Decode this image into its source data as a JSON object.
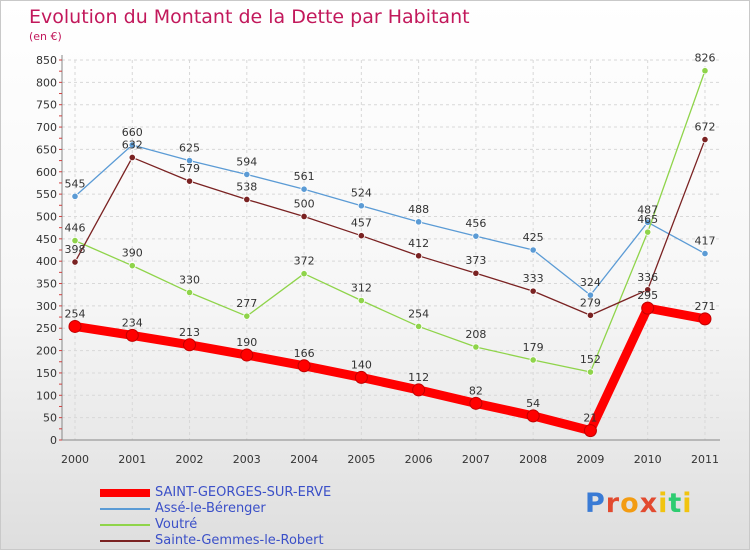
{
  "title": "Evolution du Montant de la Dette par Habitant",
  "subtitle": "(en €)",
  "logo": {
    "text": "Proxiti",
    "letters": [
      "P",
      "r",
      "o",
      "x",
      "i",
      "t",
      "i"
    ],
    "colors": [
      "#3a7bd5",
      "#e24a2f",
      "#f39c12",
      "#e24a2f",
      "#f1c40f",
      "#2ecc71",
      "#f1c40f"
    ]
  },
  "chart_data": {
    "type": "line",
    "title": "Evolution du Montant de la Dette par Habitant",
    "subtitle": "(en €)",
    "x": [
      2000,
      2001,
      2002,
      2003,
      2004,
      2005,
      2006,
      2007,
      2008,
      2009,
      2010,
      2011
    ],
    "ylim": [
      0,
      850
    ],
    "yticks": [
      0,
      50,
      100,
      150,
      200,
      250,
      300,
      350,
      400,
      450,
      500,
      550,
      600,
      650,
      700,
      750,
      800,
      850
    ],
    "grid": true,
    "legend_position": "bottom-left",
    "series": [
      {
        "name": "SAINT-GEORGES-SUR-ERVE",
        "color": "#ff0000",
        "values": [
          254,
          234,
          213,
          190,
          166,
          140,
          112,
          82,
          54,
          21,
          295,
          271
        ],
        "labels": [
          "254",
          "234",
          "213",
          "190",
          "166",
          "140",
          "112",
          "82",
          "54",
          "21",
          "295",
          "271"
        ]
      },
      {
        "name": "Assé-le-Bérenger",
        "color": "#5b9bd5",
        "values": [
          545,
          660,
          625,
          594,
          561,
          524,
          488,
          456,
          425,
          324,
          487,
          417
        ],
        "labels": [
          "545",
          "660",
          "625",
          "594",
          "561",
          "524",
          "488",
          "456",
          "425",
          "324",
          "487",
          "417"
        ]
      },
      {
        "name": "Voutré",
        "color": "#8fd44a",
        "values": [
          446,
          390,
          330,
          277,
          372,
          312,
          254,
          208,
          179,
          152,
          465,
          826
        ],
        "labels": [
          "446",
          "390",
          "330",
          "277",
          "372",
          "312",
          "254",
          "208",
          "179",
          "152",
          "465",
          "826"
        ]
      },
      {
        "name": "Sainte-Gemmes-le-Robert",
        "color": "#7a2222",
        "values": [
          398,
          632,
          579,
          538,
          500,
          457,
          412,
          373,
          333,
          279,
          336,
          672
        ],
        "labels": [
          "398",
          "632",
          "579",
          "538",
          "500",
          "457",
          "412",
          "373",
          "333",
          "279",
          "336",
          "672"
        ]
      }
    ]
  }
}
